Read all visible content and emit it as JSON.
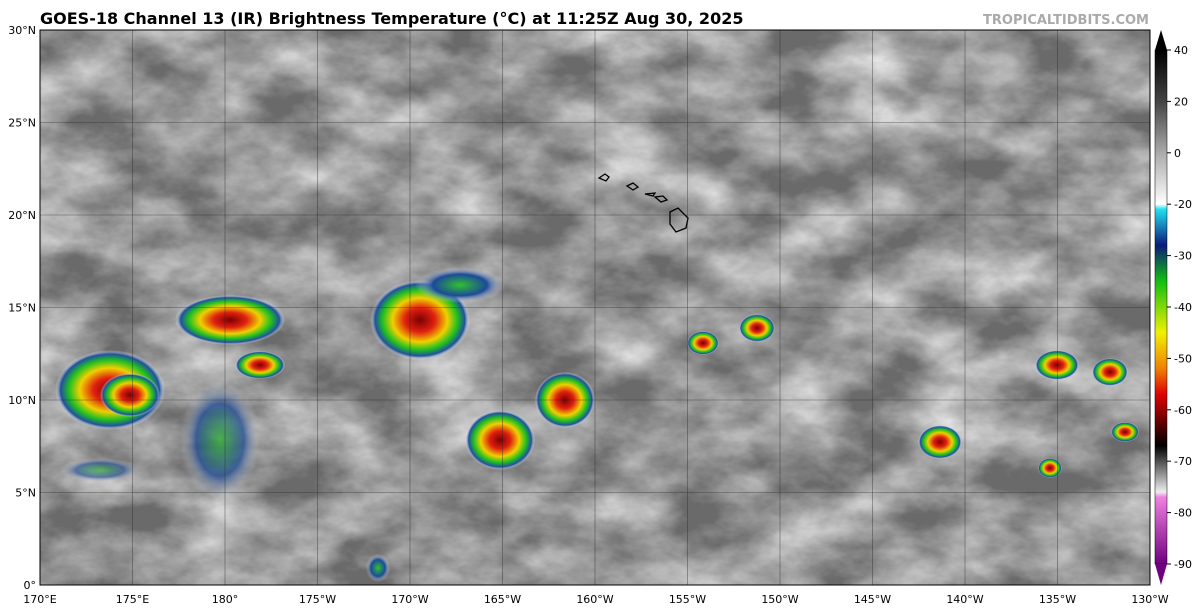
{
  "header": {
    "title": "GOES-18 Channel 13 (IR) Brightness Temperature (°C) at 11:25Z Aug 30, 2025",
    "credit": "TROPICALTIDBITS.COM"
  },
  "map": {
    "lat_labels": [
      "0°",
      "5°N",
      "10°N",
      "15°N",
      "20°N",
      "25°N",
      "30°N"
    ],
    "lon_labels": [
      "170°E",
      "175°E",
      "180°",
      "175°W",
      "170°W",
      "165°W",
      "160°W",
      "155°W",
      "150°W",
      "145°W",
      "140°W",
      "135°W",
      "130°W"
    ]
  },
  "colorbar": {
    "ticks": [
      40,
      20,
      0,
      -20,
      -30,
      -40,
      -50,
      -60,
      -70,
      -80,
      -90
    ]
  }
}
